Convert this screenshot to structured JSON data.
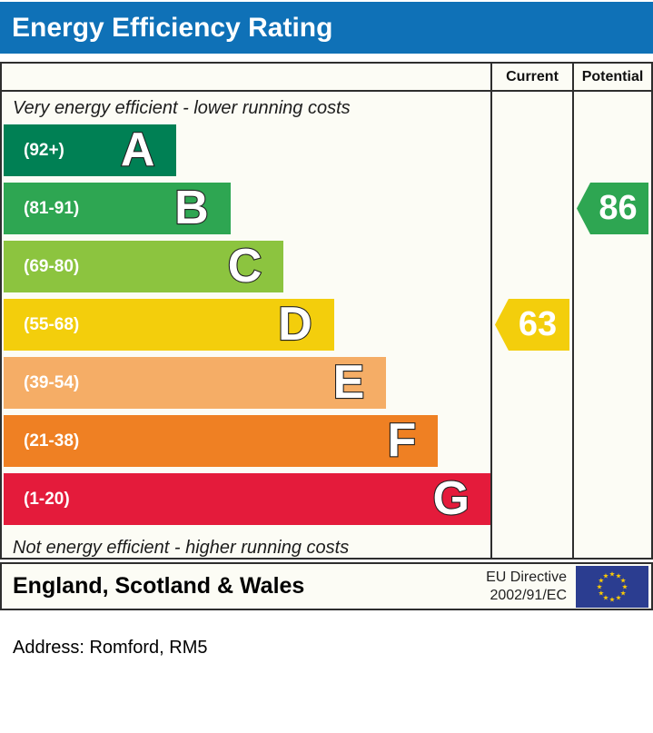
{
  "title": "Energy Efficiency Rating",
  "columns": {
    "current": "Current",
    "potential": "Potential"
  },
  "scale": {
    "top_note": "Very energy efficient - lower running costs",
    "bottom_note": "Not energy efficient - higher running costs"
  },
  "chart_data": {
    "type": "bar",
    "title": "Energy Efficiency Rating",
    "categories": [
      "A",
      "B",
      "C",
      "D",
      "E",
      "F",
      "G"
    ],
    "bands": [
      {
        "letter": "A",
        "range": "(92+)",
        "min": 92,
        "max": 100,
        "color": "#008054",
        "width_pct": 35.4
      },
      {
        "letter": "B",
        "range": "(81-91)",
        "min": 81,
        "max": 91,
        "color": "#2EA652",
        "width_pct": 46.4
      },
      {
        "letter": "C",
        "range": "(69-80)",
        "min": 69,
        "max": 80,
        "color": "#8CC43F",
        "width_pct": 57.3
      },
      {
        "letter": "D",
        "range": "(55-68)",
        "min": 55,
        "max": 68,
        "color": "#F3CE0C",
        "width_pct": 67.6
      },
      {
        "letter": "E",
        "range": "(39-54)",
        "min": 39,
        "max": 54,
        "color": "#F5AD66",
        "width_pct": 78.3
      },
      {
        "letter": "F",
        "range": "(21-38)",
        "min": 21,
        "max": 38,
        "color": "#EF8023",
        "width_pct": 88.9
      },
      {
        "letter": "G",
        "range": "(1-20)",
        "min": 1,
        "max": 20,
        "color": "#E41B3B",
        "width_pct": 99.8
      }
    ],
    "current": {
      "value": 63,
      "band": "D",
      "color": "#F3CE0C"
    },
    "potential": {
      "value": 86,
      "band": "B",
      "color": "#2EA652"
    }
  },
  "footer": {
    "region": "England, Scotland & Wales",
    "directive_line1": "EU Directive",
    "directive_line2": "2002/91/EC"
  },
  "address_label": "Address: Romford, RM5",
  "colors": {
    "title_bar": "#0F71B7",
    "border": "#2e2e2e",
    "panel_bg": "#FCFCF5",
    "flag_navy": "#2B3D90",
    "flag_star": "#FFCC00"
  }
}
